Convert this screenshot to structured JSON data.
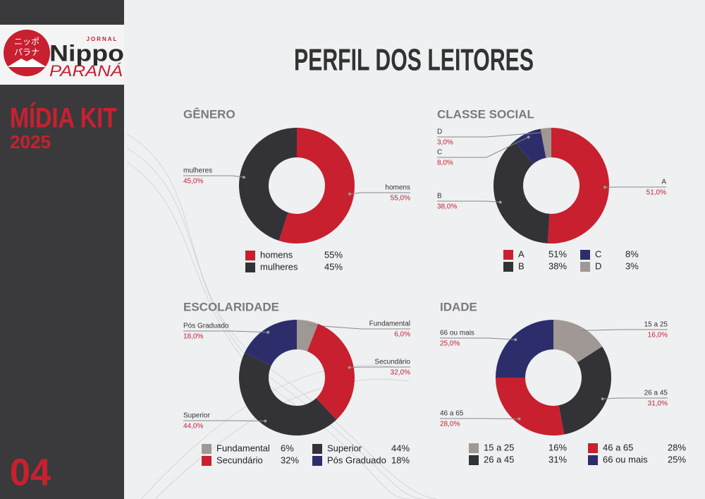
{
  "logo": {
    "jp_line1": "ニッポ",
    "jp_line2": "パラナ",
    "small": "JORNAL",
    "name": "Nippo",
    "region": "PARANÁ"
  },
  "sidebar": {
    "title": "MÍDIA KIT",
    "year": "2025",
    "page": "04"
  },
  "title": "PERFIL DOS LEITORES",
  "chart_data": [
    {
      "type": "pie",
      "donut": true,
      "title": "GÊNERO",
      "categories": [
        "homens",
        "mulheres"
      ],
      "values": [
        55,
        45
      ],
      "colors": [
        "#c8202f",
        "#333236"
      ],
      "value_labels": [
        "55,0%",
        "45,0%"
      ],
      "legend_labels": [
        "55%",
        "45%"
      ]
    },
    {
      "type": "pie",
      "donut": true,
      "title": "CLASSE SOCIAL",
      "categories": [
        "A",
        "B",
        "C",
        "D"
      ],
      "values": [
        51,
        38,
        8,
        3
      ],
      "colors": [
        "#c8202f",
        "#333236",
        "#2e2d6b",
        "#a09894"
      ],
      "value_labels": [
        "51,0%",
        "38,0%",
        "8,0%",
        "3,0%"
      ],
      "legend_labels": [
        "51%",
        "38%",
        "8%",
        "3%"
      ]
    },
    {
      "type": "pie",
      "donut": true,
      "title": "ESCOLARIDADE",
      "categories": [
        "Fundamental",
        "Secundário",
        "Superior",
        "Pós Graduado"
      ],
      "values": [
        6,
        32,
        44,
        18
      ],
      "colors": [
        "#a09894",
        "#c8202f",
        "#333236",
        "#2e2d6b"
      ],
      "value_labels": [
        "6,0%",
        "32,0%",
        "44,0%",
        "18,0%"
      ],
      "legend_labels": [
        "6%",
        "32%",
        "44%",
        "18%"
      ]
    },
    {
      "type": "pie",
      "donut": true,
      "title": "IDADE",
      "categories": [
        "15 a 25",
        "26 a 45",
        "46 a 65",
        "66 ou mais"
      ],
      "values": [
        16,
        31,
        28,
        25
      ],
      "colors": [
        "#a09894",
        "#333236",
        "#c8202f",
        "#2e2d6b"
      ],
      "value_labels": [
        "16,0%",
        "31,0%",
        "28,0%",
        "25,0%"
      ],
      "legend_labels": [
        "16%",
        "31%",
        "28%",
        "25%"
      ]
    }
  ]
}
